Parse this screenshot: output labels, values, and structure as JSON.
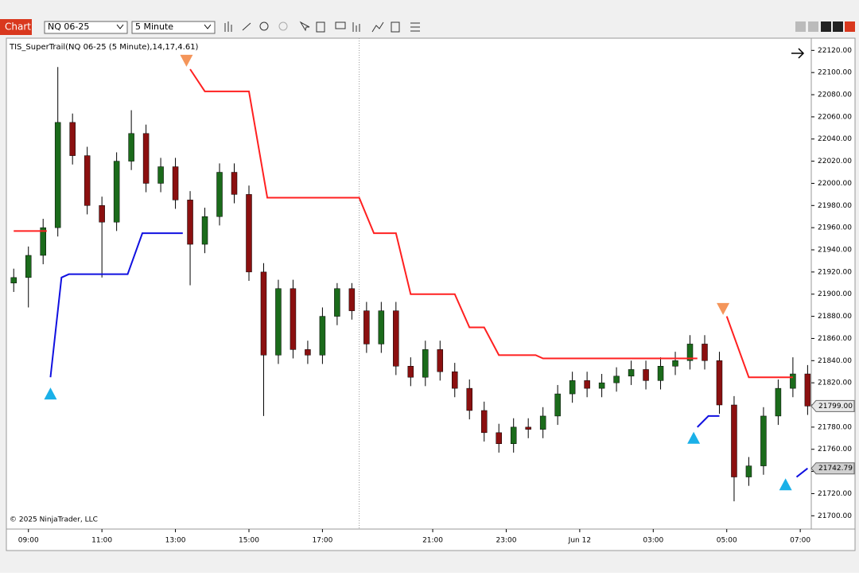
{
  "toolbar": {
    "tab": "Chart",
    "instrument": "NQ 06-25",
    "interval": "5 Minute"
  },
  "copyright": "© 2025 NinjaTrader, LLC",
  "chart_data": {
    "type": "candlestick",
    "title": "TIS_SuperTrail(NQ 06-25 (5 Minute),14,17,4.61)",
    "xlim": [
      -0.6,
      21.3
    ],
    "xticks": [
      {
        "value": 0,
        "label": "09:00"
      },
      {
        "value": 2,
        "label": "11:00"
      },
      {
        "value": 4,
        "label": "13:00"
      },
      {
        "value": 6,
        "label": "15:00"
      },
      {
        "value": 8,
        "label": "17:00"
      },
      {
        "value": 11,
        "label": "21:00"
      },
      {
        "value": 13,
        "label": "23:00"
      },
      {
        "value": 15,
        "label": "Jun 12"
      },
      {
        "value": 17,
        "label": "03:00"
      },
      {
        "value": 19,
        "label": "05:00"
      },
      {
        "value": 21,
        "label": "07:00"
      }
    ],
    "ylim": [
      21688,
      22131
    ],
    "yticks": [
      {
        "value": 21700,
        "label": "21700.00"
      },
      {
        "value": 21720,
        "label": "21720.00"
      },
      {
        "value": 21740,
        "label": "21740.00"
      },
      {
        "value": 21760,
        "label": "21760.00"
      },
      {
        "value": 21780,
        "label": "21780.00"
      },
      {
        "value": 21800,
        "label": "21800.00"
      },
      {
        "value": 21820,
        "label": "21820.00"
      },
      {
        "value": 21840,
        "label": "21840.00"
      },
      {
        "value": 21860,
        "label": "21860.00"
      },
      {
        "value": 21880,
        "label": "21880.00"
      },
      {
        "value": 21900,
        "label": "21900.00"
      },
      {
        "value": 21920,
        "label": "21920.00"
      },
      {
        "value": 21940,
        "label": "21940.00"
      },
      {
        "value": 21960,
        "label": "21960.00"
      },
      {
        "value": 21980,
        "label": "21980.00"
      },
      {
        "value": 22000,
        "label": "22000.00"
      },
      {
        "value": 22020,
        "label": "22020.00"
      },
      {
        "value": 22040,
        "label": "22040.00"
      },
      {
        "value": 22060,
        "label": "22060.00"
      },
      {
        "value": 22080,
        "label": "22080.00"
      },
      {
        "value": 22100,
        "label": "22100.00"
      },
      {
        "value": 22120,
        "label": "22120.00"
      }
    ],
    "session_break_x": 9.0,
    "up_color": "#1b6b1b",
    "down_color": "#8b1010",
    "wick_color": "#000000",
    "x": [
      -0.4,
      0,
      0.4,
      0.8,
      1.2,
      1.6,
      2.0,
      2.4,
      2.8,
      3.2,
      3.6,
      4.0,
      4.4,
      4.8,
      5.2,
      5.6,
      6.0,
      6.4,
      6.8,
      7.2,
      7.6,
      8.0,
      8.4,
      8.8,
      9.2,
      9.6,
      10.0,
      10.4,
      10.8,
      11.2,
      11.6,
      12.0,
      12.4,
      12.8,
      13.2,
      13.6,
      14.0,
      14.4,
      14.8,
      15.2,
      15.6,
      16.0,
      16.4,
      16.8,
      17.2,
      17.6,
      18.0,
      18.4,
      18.8,
      19.2,
      19.6,
      20.0,
      20.4,
      20.8,
      21.2
    ],
    "open": [
      21910,
      21915,
      21935,
      21960,
      22055,
      22025,
      21980,
      21965,
      22020,
      22045,
      22000,
      22015,
      21985,
      21945,
      21970,
      22010,
      21990,
      21920,
      21845,
      21905,
      21850,
      21845,
      21880,
      21905,
      21885,
      21855,
      21885,
      21835,
      21825,
      21850,
      21830,
      21815,
      21795,
      21775,
      21765,
      21780,
      21778,
      21790,
      21810,
      21822,
      21815,
      21820,
      21826,
      21832,
      21822,
      21835,
      21840,
      21855,
      21840,
      21800,
      21735,
      21745,
      21790,
      21815,
      21828
    ],
    "high": [
      21923,
      21943,
      21968,
      22105,
      22063,
      22033,
      21988,
      22028,
      22066,
      22053,
      22023,
      22023,
      21993,
      21978,
      22018,
      22018,
      21998,
      21928,
      21913,
      21913,
      21858,
      21888,
      21910,
      21910,
      21893,
      21893,
      21893,
      21843,
      21858,
      21858,
      21838,
      21823,
      21803,
      21783,
      21788,
      21788,
      21798,
      21818,
      21830,
      21830,
      21828,
      21834,
      21840,
      21840,
      21843,
      21848,
      21863,
      21863,
      21848,
      21808,
      21753,
      21798,
      21823,
      21843,
      21836
    ],
    "low": [
      21902,
      21888,
      21927,
      21952,
      22017,
      21972,
      21915,
      21957,
      22012,
      21992,
      21992,
      21977,
      21908,
      21937,
      21962,
      21982,
      21912,
      21790,
      21837,
      21842,
      21837,
      21837,
      21872,
      21877,
      21847,
      21847,
      21827,
      21817,
      21817,
      21822,
      21807,
      21787,
      21767,
      21757,
      21757,
      21770,
      21770,
      21782,
      21802,
      21807,
      21807,
      21812,
      21818,
      21814,
      21814,
      21827,
      21832,
      21832,
      21792,
      21713,
      21727,
      21737,
      21782,
      21807,
      21791
    ],
    "close": [
      21915,
      21935,
      21960,
      22055,
      22025,
      21980,
      21965,
      22020,
      22045,
      22000,
      22015,
      21985,
      21945,
      21970,
      22010,
      21990,
      21920,
      21845,
      21905,
      21850,
      21845,
      21880,
      21905,
      21885,
      21855,
      21885,
      21835,
      21825,
      21850,
      21830,
      21815,
      21795,
      21775,
      21765,
      21780,
      21778,
      21790,
      21810,
      21822,
      21815,
      21820,
      21826,
      21832,
      21822,
      21835,
      21840,
      21855,
      21840,
      21800,
      21735,
      21745,
      21790,
      21815,
      21828,
      21799
    ],
    "lines": [
      {
        "color": "#ff2020",
        "x": [
          -0.4,
          0.5,
          null,
          4.4,
          4.8,
          6.0,
          6.5,
          9.0,
          9.4,
          10.0,
          10.4,
          11.6,
          12.0,
          12.4,
          12.8,
          13.8,
          14.0,
          18.2,
          null,
          19.0,
          19.6,
          20.8
        ],
        "values": [
          21957,
          21957,
          null,
          22103,
          22083,
          22083,
          21987,
          21987,
          21955,
          21955,
          21900,
          21900,
          21870,
          21870,
          21845,
          21845,
          21842,
          21842,
          null,
          21880,
          21825,
          21825
        ]
      },
      {
        "color": "#1010e0",
        "x": [
          0.6,
          0.9,
          1.1,
          2.7,
          3.1,
          4.2,
          null,
          18.2,
          18.5,
          18.8,
          null,
          20.9,
          21.2
        ],
        "values": [
          21825,
          21915,
          21918,
          21918,
          21955,
          21955,
          null,
          21780,
          21790,
          21790,
          null,
          21735,
          21742.79
        ]
      }
    ],
    "signals": [
      {
        "x": 4.3,
        "y": 22111,
        "direction": "down",
        "color": "#f4955a"
      },
      {
        "x": 18.9,
        "y": 21887,
        "direction": "down",
        "color": "#f4955a"
      },
      {
        "x": 0.6,
        "y": 21810,
        "direction": "up",
        "color": "#1ab0e8"
      },
      {
        "x": 18.1,
        "y": 21770,
        "direction": "up",
        "color": "#1ab0e8"
      },
      {
        "x": 20.6,
        "y": 21728,
        "direction": "up",
        "color": "#1ab0e8"
      }
    ],
    "price_markers": [
      {
        "value": 21799,
        "label": "21799.00",
        "color": "#e8e8e8"
      },
      {
        "value": 21742.79,
        "label": "21742.79",
        "color": "#d0d0d0"
      }
    ]
  }
}
